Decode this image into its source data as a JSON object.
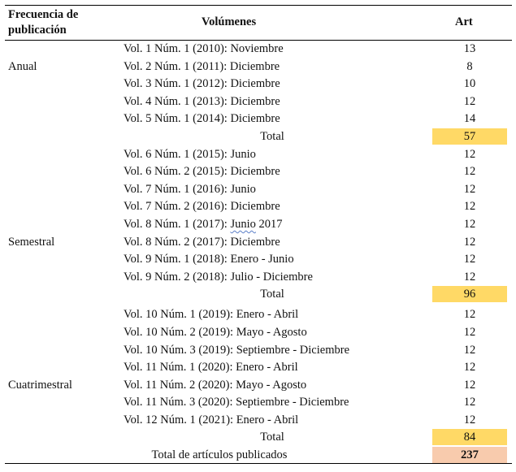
{
  "header": {
    "col1_line1": "Frecuencia de",
    "col1_line2": "publicación",
    "col2": "Volúmenes",
    "col3": "Art"
  },
  "colors": {
    "subtotal_highlight": "#FFD966",
    "grand_total_highlight": "#F8CBAD"
  },
  "rows": [
    {
      "freq": "",
      "vol": "Vol. 1 Núm. 1 (2010): Noviembre",
      "art": "13"
    },
    {
      "freq": "Anual",
      "vol": "Vol. 2 Núm. 1 (2011): Diciembre",
      "art": "8"
    },
    {
      "freq": "",
      "vol": "Vol. 3 Núm. 1 (2012): Diciembre",
      "art": "10"
    },
    {
      "freq": "",
      "vol": "Vol. 4 Núm. 1 (2013): Diciembre",
      "art": "12"
    },
    {
      "freq": "",
      "vol": "Vol. 5 Núm. 1 (2014): Diciembre",
      "art": "14"
    },
    {
      "freq": "",
      "vol": "Total",
      "art": "57",
      "type": "total"
    },
    {
      "freq": "",
      "vol": "Vol. 6 Núm. 1 (2015): Junio",
      "art": "12"
    },
    {
      "freq": "",
      "vol": "Vol. 6 Núm. 2 (2015): Diciembre",
      "art": "12"
    },
    {
      "freq": "",
      "vol": "Vol. 7 Núm. 1 (2016): Junio",
      "art": "12"
    },
    {
      "freq": "",
      "vol": "Vol. 7 Núm. 2 (2016): Diciembre",
      "art": "12"
    },
    {
      "freq": "",
      "vol": "Vol. 8 Núm. 1 (2017): Junio 2017",
      "art": "12",
      "underline": "Junio"
    },
    {
      "freq": "Semestral",
      "vol": "Vol. 8 Núm. 2 (2017): Diciembre",
      "art": "12"
    },
    {
      "freq": "",
      "vol": "Vol. 9 Núm. 1 (2018): Enero - Junio",
      "art": "12"
    },
    {
      "freq": "",
      "vol": "Vol. 9 Núm. 2 (2018): Julio - Diciembre",
      "art": "12"
    },
    {
      "freq": "",
      "vol": "Total",
      "art": "96",
      "type": "total"
    },
    {
      "freq": "",
      "vol": "Vol. 10 Núm. 1 (2019): Enero - Abril",
      "art": "12"
    },
    {
      "freq": "",
      "vol": "Vol. 10 Núm. 2 (2019): Mayo - Agosto",
      "art": "12"
    },
    {
      "freq": "",
      "vol": "Vol. 10 Núm. 3 (2019): Septiembre - Diciembre",
      "art": "12"
    },
    {
      "freq": "",
      "vol": "Vol. 11 Núm. 1 (2020): Enero - Abril",
      "art": "12"
    },
    {
      "freq": "Cuatrimestral",
      "vol": "Vol. 11 Núm. 2 (2020): Mayo - Agosto",
      "art": "12"
    },
    {
      "freq": "",
      "vol": "Vol. 11 Núm. 3 (2020): Septiembre - Diciembre",
      "art": "12"
    },
    {
      "freq": "",
      "vol": "Vol. 12 Núm. 1 (2021): Enero - Abril",
      "art": "12"
    },
    {
      "freq": "",
      "vol": "Total",
      "art": "84",
      "type": "total"
    },
    {
      "freq": "",
      "vol": "Total de artículos publicados",
      "art": "237",
      "type": "grand"
    }
  ]
}
